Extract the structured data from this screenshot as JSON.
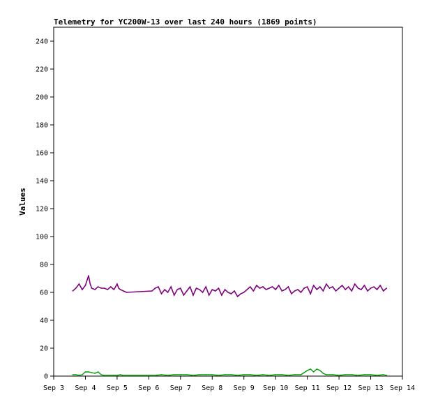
{
  "chart_data": {
    "type": "line",
    "title": "Telemetry for YC200W-13 over last 240 hours (1869 points)",
    "xlabel": "",
    "ylabel": "Values",
    "ylim": [
      0,
      250
    ],
    "yticks": [
      0,
      20,
      40,
      60,
      80,
      100,
      120,
      140,
      160,
      180,
      200,
      220,
      240
    ],
    "xlim": [
      "2024-09-03",
      "2024-09-14"
    ],
    "xticks": [
      "Sep 3",
      "Sep 4",
      "Sep 5",
      "Sep 6",
      "Sep 7",
      "Sep 8",
      "Sep 9",
      "Sep 10",
      "Sep 11",
      "Sep 12",
      "Sep 13",
      "Sep 14"
    ],
    "grid": false,
    "legend": "none",
    "series": [
      {
        "color": "#800080",
        "x": [
          3.6,
          3.7,
          3.8,
          3.9,
          4.0,
          4.1,
          4.15,
          4.2,
          4.3,
          4.4,
          4.5,
          4.6,
          4.7,
          4.8,
          4.9,
          5.0,
          5.05,
          5.1,
          5.2,
          5.3,
          6.1,
          6.2,
          6.3,
          6.4,
          6.5,
          6.6,
          6.7,
          6.8,
          6.9,
          7.0,
          7.1,
          7.2,
          7.3,
          7.4,
          7.5,
          7.6,
          7.7,
          7.8,
          7.9,
          8.0,
          8.1,
          8.2,
          8.3,
          8.4,
          8.5,
          8.6,
          8.7,
          8.8,
          8.9,
          9.0,
          9.1,
          9.2,
          9.3,
          9.4,
          9.5,
          9.6,
          9.7,
          9.8,
          9.9,
          10.0,
          10.1,
          10.2,
          10.3,
          10.4,
          10.5,
          10.6,
          10.7,
          10.8,
          10.9,
          11.0,
          11.1,
          11.2,
          11.3,
          11.4,
          11.5,
          11.6,
          11.7,
          11.8,
          11.9,
          12.0,
          12.1,
          12.2,
          12.3,
          12.4,
          12.5,
          12.6,
          12.7,
          12.8,
          12.9,
          13.0,
          13.1,
          13.2,
          13.3,
          13.4,
          13.5
        ],
        "y": [
          61,
          63,
          66,
          62,
          65,
          72,
          66,
          63,
          62,
          64,
          63,
          63,
          62,
          64,
          62,
          66,
          63,
          62,
          61,
          60,
          61,
          63,
          64,
          59,
          62,
          60,
          64,
          58,
          62,
          63,
          58,
          61,
          64,
          58,
          63,
          62,
          60,
          64,
          58,
          62,
          61,
          63,
          58,
          62,
          60,
          59,
          61,
          57,
          59,
          60,
          62,
          64,
          61,
          65,
          63,
          64,
          62,
          63,
          64,
          62,
          65,
          61,
          62,
          64,
          59,
          61,
          62,
          60,
          63,
          64,
          59,
          65,
          62,
          64,
          61,
          66,
          63,
          64,
          61,
          63,
          65,
          62,
          64,
          61,
          66,
          63,
          62,
          65,
          61,
          63,
          64,
          62,
          65,
          61,
          63
        ]
      },
      {
        "color": "#00a000",
        "x": [
          3.6,
          3.7,
          3.8,
          3.9,
          4.0,
          4.1,
          4.2,
          4.3,
          4.4,
          4.5,
          4.6,
          4.7,
          4.8,
          4.9,
          5.0,
          5.1,
          5.2,
          5.3,
          6.1,
          6.2,
          6.4,
          6.6,
          6.8,
          7.0,
          7.2,
          7.4,
          7.6,
          7.8,
          8.0,
          8.2,
          8.4,
          8.6,
          8.8,
          9.0,
          9.2,
          9.4,
          9.6,
          9.8,
          10.0,
          10.2,
          10.4,
          10.6,
          10.8,
          11.0,
          11.1,
          11.2,
          11.3,
          11.4,
          11.5,
          11.6,
          11.8,
          12.0,
          12.2,
          12.4,
          12.6,
          12.8,
          13.0,
          13.2,
          13.4,
          13.5
        ],
        "y": [
          1,
          1,
          0.5,
          1,
          3,
          3,
          2.5,
          2,
          3,
          1,
          0.5,
          0.5,
          0.5,
          0.5,
          0.5,
          1,
          0.5,
          0.5,
          0.5,
          0.5,
          1,
          0.5,
          1,
          1,
          1,
          0.5,
          1,
          1,
          1,
          0.5,
          1,
          1,
          0.5,
          1,
          1,
          0.5,
          1,
          0.5,
          1,
          1,
          0.5,
          1,
          1,
          4,
          5,
          3,
          5,
          4,
          2,
          1,
          1,
          0.5,
          1,
          1,
          0.5,
          1,
          1,
          0.5,
          1,
          0.5
        ]
      }
    ]
  }
}
